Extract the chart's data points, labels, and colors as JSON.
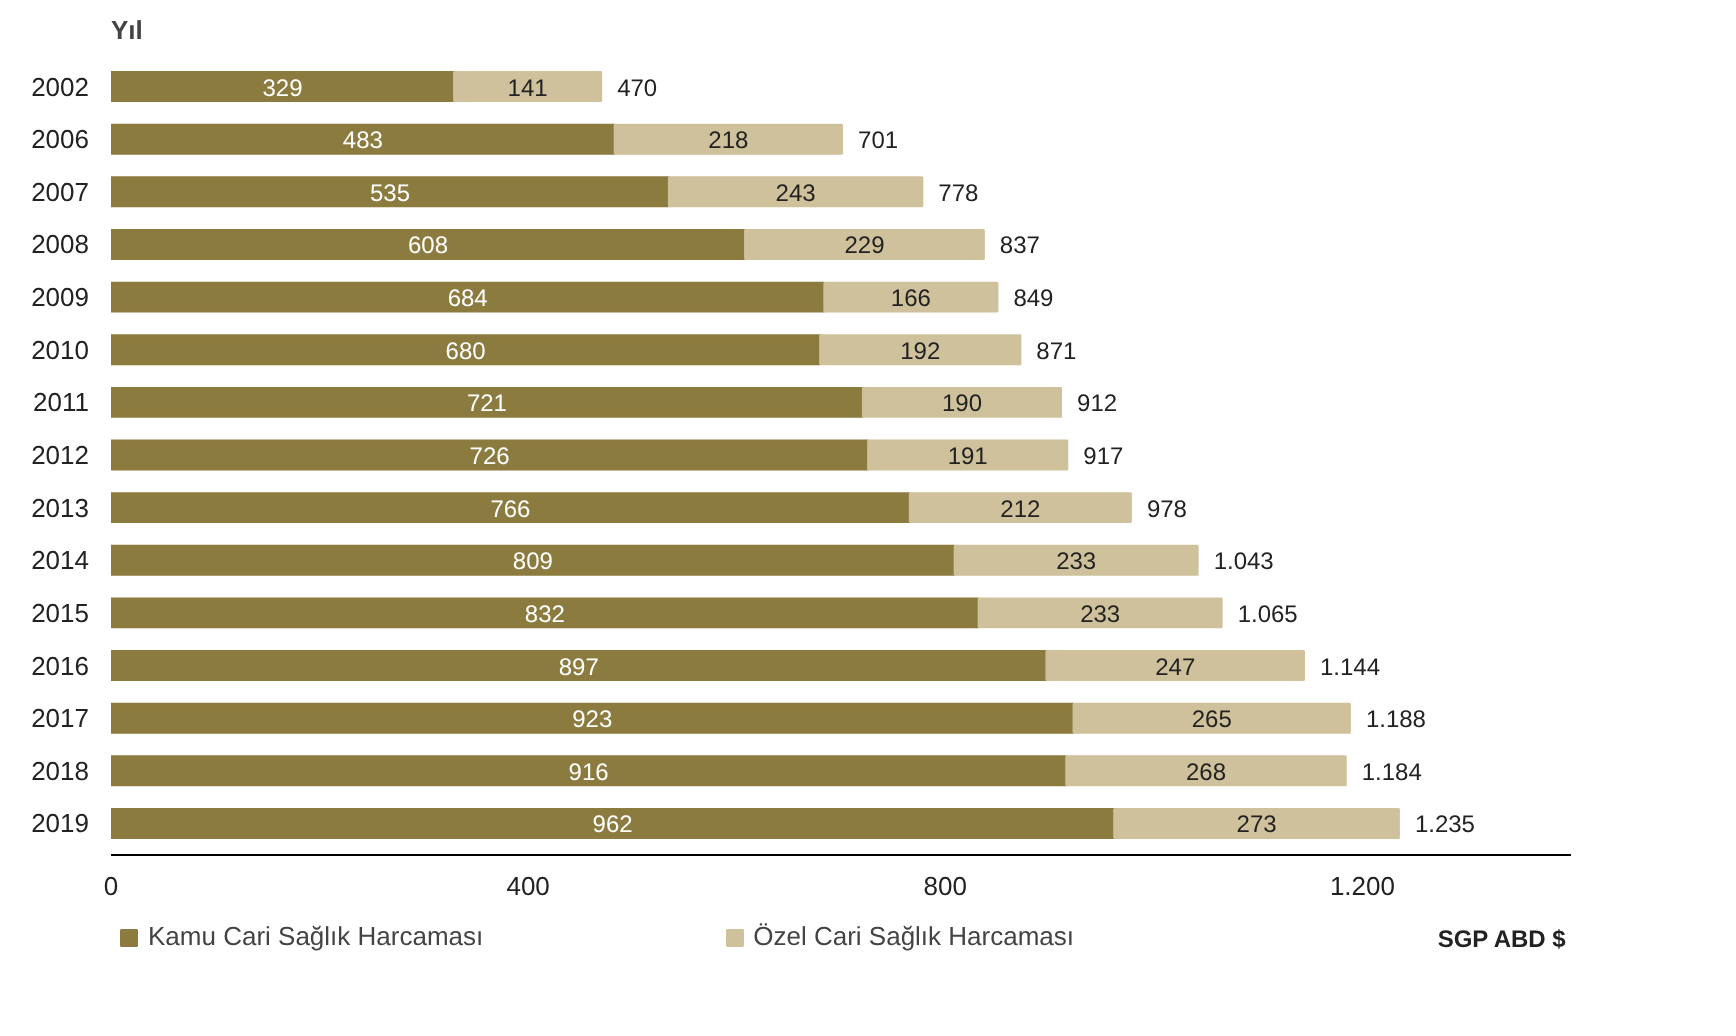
{
  "chart_data": {
    "type": "bar",
    "orientation": "horizontal",
    "stacked": true,
    "xlabel": "SGP ABD $",
    "ylabel": "Yıl",
    "categories": [
      "2002",
      "2006",
      "2007",
      "2008",
      "2009",
      "2010",
      "2011",
      "2012",
      "2013",
      "2014",
      "2015",
      "2016",
      "2017",
      "2018",
      "2019"
    ],
    "series": [
      {
        "name": "Kamu Cari Sağlık Harcaması",
        "color": "#8c7b3e",
        "values": [
          329,
          483,
          535,
          608,
          684,
          680,
          721,
          726,
          766,
          809,
          832,
          897,
          923,
          916,
          962
        ]
      },
      {
        "name": "Özel Cari Sağlık Harcaması",
        "color": "#cec19b",
        "values": [
          141,
          218,
          243,
          229,
          166,
          192,
          190,
          191,
          212,
          233,
          233,
          247,
          265,
          268,
          273
        ]
      }
    ],
    "totals": [
      "470",
      "701",
      "778",
      "837",
      "849",
      "871",
      "912",
      "917",
      "978",
      "1.043",
      "1.065",
      "1.144",
      "1.188",
      "1.184",
      "1.235"
    ],
    "data_labels": true,
    "xlim": [
      0,
      1400
    ],
    "xticks": [
      0,
      400,
      800,
      {
        "value": 1200,
        "label": "1.200"
      }
    ],
    "grid": false,
    "legend": "bottom"
  }
}
